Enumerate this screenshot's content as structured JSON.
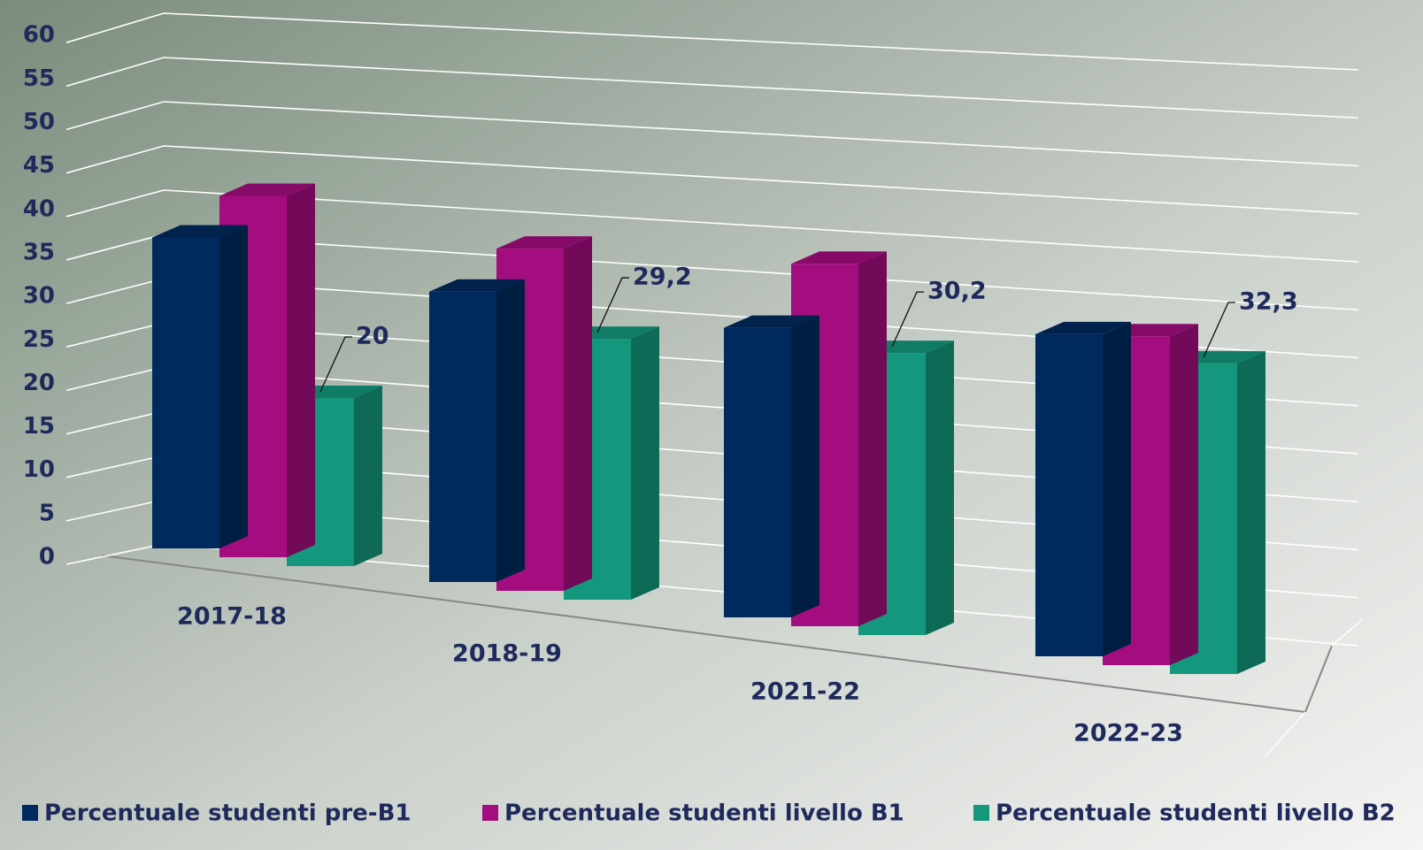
{
  "chart_data": {
    "type": "bar3d",
    "categories": [
      "2017-18",
      "2018-19",
      "2021-22",
      "2022-23"
    ],
    "series": [
      {
        "name": "Percentuale studenti pre-B1",
        "color": "#002a5e",
        "values": [
          37,
          32.5,
          31,
          33.5
        ]
      },
      {
        "name": "Percentuale studenti livello B1",
        "color": "#a30d7f",
        "values": [
          43,
          38.3,
          38.8,
          34.2
        ]
      },
      {
        "name": "Percentuale studenti livello B2",
        "color": "#14977c",
        "values": [
          20,
          29.2,
          30.2,
          32.3
        ],
        "value_labels": [
          "20",
          "29,2",
          "30,2",
          "32,3"
        ]
      }
    ],
    "ylim": [
      0,
      60
    ],
    "yticks": [
      0,
      5,
      10,
      15,
      20,
      25,
      30,
      35,
      40,
      45,
      50,
      55,
      60
    ],
    "grid": true,
    "legend": "bottom"
  }
}
